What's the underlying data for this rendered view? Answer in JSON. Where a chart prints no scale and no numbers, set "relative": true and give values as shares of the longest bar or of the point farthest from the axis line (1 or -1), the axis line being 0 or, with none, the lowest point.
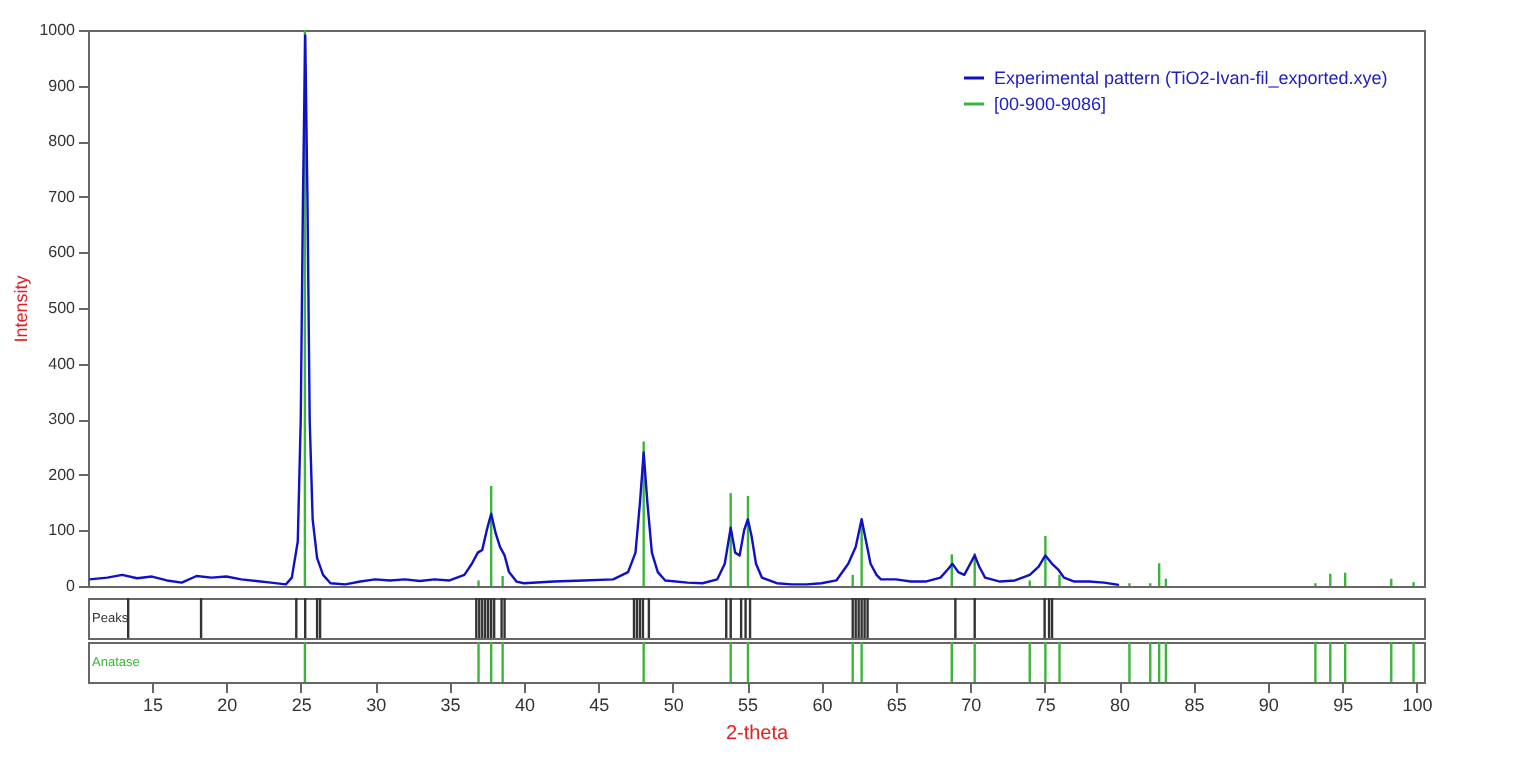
{
  "chart_data": [
    {
      "type": "line",
      "ylabel": "Intensity",
      "xlim": [
        10.7,
        100.5
      ],
      "ylim": [
        0,
        1000
      ],
      "yticks": [
        0,
        100,
        200,
        300,
        400,
        500,
        600,
        700,
        800,
        900,
        1000
      ],
      "xticks": [
        15,
        20,
        25,
        30,
        35,
        40,
        45,
        50,
        55,
        60,
        65,
        70,
        75,
        80,
        85,
        90,
        95,
        100
      ],
      "tick_labels": "y",
      "legend": "top right",
      "grid": false,
      "series": [
        {
          "name": "Experimental pattern (TiO2-Ivan-fil_exported.xye)",
          "color": "#1010c8",
          "type": "line",
          "x": [
            10.8,
            12,
            13,
            14,
            15,
            16,
            17,
            18,
            19,
            20,
            21,
            22,
            23,
            24,
            24.4,
            24.8,
            25.0,
            25.15,
            25.3,
            25.45,
            25.6,
            25.8,
            26.1,
            26.5,
            27,
            28,
            29,
            30,
            31,
            32,
            33,
            34,
            35,
            36,
            36.5,
            36.9,
            37.2,
            37.5,
            37.8,
            38.1,
            38.4,
            38.7,
            39.0,
            39.5,
            40,
            42,
            44,
            46,
            47,
            47.5,
            47.8,
            48.05,
            48.3,
            48.6,
            49,
            49.5,
            51,
            52,
            53,
            53.5,
            53.9,
            54.2,
            54.5,
            54.8,
            55.05,
            55.3,
            55.6,
            56,
            57,
            58,
            59,
            60,
            61,
            61.8,
            62.3,
            62.7,
            63.0,
            63.3,
            63.7,
            64,
            65,
            66,
            67,
            68,
            68.5,
            68.8,
            69.2,
            69.6,
            70.0,
            70.3,
            70.6,
            71,
            72,
            73,
            74,
            74.6,
            75.05,
            75.5,
            75.9,
            76.3,
            77,
            78,
            79,
            80
          ],
          "values": [
            12,
            15,
            20,
            14,
            17,
            10,
            6,
            18,
            15,
            17,
            12,
            9,
            6,
            3,
            15,
            80,
            300,
            700,
            990,
            700,
            300,
            120,
            50,
            20,
            5,
            3,
            8,
            12,
            10,
            12,
            9,
            12,
            10,
            20,
            40,
            60,
            65,
            100,
            130,
            95,
            70,
            55,
            25,
            8,
            5,
            8,
            10,
            12,
            25,
            60,
            150,
            240,
            150,
            60,
            25,
            10,
            6,
            5,
            12,
            40,
            105,
            60,
            55,
            100,
            120,
            90,
            40,
            15,
            5,
            3,
            3,
            5,
            10,
            40,
            70,
            120,
            80,
            40,
            20,
            12,
            12,
            8,
            8,
            15,
            30,
            40,
            25,
            20,
            40,
            55,
            35,
            15,
            8,
            10,
            20,
            35,
            55,
            40,
            30,
            15,
            8,
            8,
            6,
            2
          ]
        },
        {
          "name": "[00-900-9086]",
          "color": "#3cb43c",
          "type": "bar",
          "x": [
            25.28,
            36.95,
            37.8,
            38.57,
            48.05,
            53.9,
            55.06,
            62.1,
            62.7,
            68.76,
            70.3,
            74.0,
            75.05,
            76.0,
            80.7,
            82.1,
            82.7,
            83.15,
            93.2,
            94.2,
            95.2,
            98.3,
            99.8
          ],
          "values": [
            1000,
            10,
            180,
            18,
            260,
            167,
            162,
            20,
            120,
            57,
            59,
            10,
            90,
            20,
            5,
            5,
            41,
            13,
            5,
            22,
            24,
            13,
            7
          ]
        }
      ]
    },
    {
      "type": "bar",
      "relative": true,
      "xlim": [
        10.7,
        100.5
      ],
      "tick_labels": false,
      "legend": false,
      "series": [
        {
          "name": "Peaks",
          "color": "#333333",
          "x": [
            13.4,
            18.3,
            24.7,
            25.3,
            26.1,
            26.3,
            36.8,
            37.0,
            37.2,
            37.4,
            37.6,
            37.8,
            38.0,
            38.5,
            38.7,
            47.4,
            47.6,
            47.8,
            48.0,
            48.4,
            53.6,
            53.9,
            54.6,
            54.9,
            55.2,
            62.1,
            62.3,
            62.5,
            62.7,
            62.9,
            63.1,
            69.0,
            70.3,
            75.0,
            75.3,
            75.5
          ],
          "values": [
            1,
            1,
            1,
            1,
            1,
            1,
            1,
            1,
            1,
            1,
            1,
            1,
            1,
            1,
            1,
            1,
            1,
            1,
            1,
            1,
            1,
            1,
            1,
            1,
            1,
            1,
            1,
            1,
            1,
            1,
            1,
            1,
            1,
            1,
            1,
            1
          ]
        }
      ]
    },
    {
      "type": "bar",
      "relative": true,
      "xlim": [
        10.7,
        100.5
      ],
      "xticks": [
        15,
        20,
        25,
        30,
        35,
        40,
        45,
        50,
        55,
        60,
        65,
        70,
        75,
        80,
        85,
        90,
        95,
        100
      ],
      "xlabel": "2-theta",
      "tick_labels": "x",
      "legend": false,
      "series": [
        {
          "name": "Anatase",
          "color": "#3cb43c",
          "x": [
            25.28,
            36.95,
            37.8,
            38.57,
            48.05,
            53.9,
            55.06,
            62.1,
            62.7,
            68.76,
            70.3,
            74.0,
            75.05,
            76.0,
            80.7,
            82.1,
            82.7,
            83.15,
            93.2,
            94.2,
            95.2,
            98.3,
            99.8
          ],
          "values": [
            1,
            1,
            1,
            1,
            1,
            1,
            1,
            1,
            1,
            1,
            1,
            1,
            1,
            1,
            1,
            1,
            1,
            1,
            1,
            1,
            1,
            1,
            1
          ]
        }
      ]
    }
  ]
}
